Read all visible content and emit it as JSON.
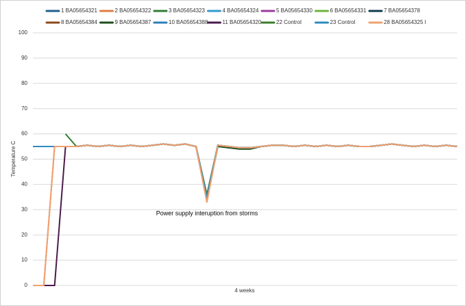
{
  "chart_data": {
    "type": "line",
    "ylabel": "Temperature C",
    "xlabel": "4 weeks",
    "annotation": "Power supply interuption from storms",
    "legend": "top",
    "grid": true,
    "ylim": [
      0,
      100
    ],
    "yticks": [
      0,
      10,
      20,
      30,
      40,
      50,
      60,
      70,
      80,
      90,
      100
    ],
    "categories": [
      null,
      null,
      null,
      null,
      null,
      null,
      null,
      null,
      null,
      null,
      null,
      null,
      null,
      null,
      null,
      null,
      null,
      null,
      null,
      null,
      null,
      null,
      null,
      null,
      null,
      null,
      null,
      null,
      null,
      null,
      null,
      null,
      null,
      null,
      null,
      null,
      null,
      null,
      null,
      null
    ],
    "series": [
      {
        "name": "1 BA05654321",
        "color": "#1f5f8b",
        "values": [
          null,
          null,
          null,
          55,
          55,
          55.5,
          55,
          55.5,
          55,
          55.5,
          55,
          55.5,
          56,
          55.5,
          56,
          55,
          34,
          55.5,
          55,
          54.5,
          54.5,
          55,
          55.5,
          55.5,
          55,
          55.5,
          55,
          55.5,
          55,
          55.5,
          55,
          55,
          55.5,
          56,
          55.5,
          55,
          55.5,
          55,
          55.5,
          55
        ]
      },
      {
        "name": "2 BA05654322",
        "color": "#e07b45",
        "values": [
          0,
          0,
          55,
          55,
          55,
          55.5,
          55,
          55.5,
          55,
          55.5,
          55,
          55.5,
          56,
          55.5,
          56,
          55,
          33,
          55.5,
          55,
          54.5,
          54.5,
          55,
          55.5,
          55.5,
          55,
          55.5,
          55,
          55.5,
          55,
          55.5,
          55,
          55,
          55.5,
          56,
          55.5,
          55,
          55.5,
          55,
          55.5,
          55
        ]
      },
      {
        "name": "3 BA05654323",
        "color": "#2e7d32",
        "values": [
          null,
          null,
          null,
          60,
          55,
          55.5,
          55,
          55.5,
          55,
          55.5,
          55,
          55.5,
          56,
          55.5,
          56,
          55,
          35,
          55.5,
          55,
          54.5,
          54.5,
          55,
          55.5,
          55.5,
          55,
          55.5,
          55,
          55.5,
          55,
          55.5,
          55,
          55,
          55.5,
          56,
          55.5,
          55,
          55.5,
          55,
          55.5,
          55
        ]
      },
      {
        "name": "4 BA05654324",
        "color": "#3399cc",
        "values": [
          null,
          null,
          null,
          55,
          55,
          55.5,
          55,
          55.5,
          55,
          55.5,
          55,
          55.5,
          56,
          55.5,
          56,
          55,
          34,
          55.5,
          55,
          54.5,
          54.5,
          55,
          55.5,
          55.5,
          55,
          55.5,
          55,
          55.5,
          55,
          55.5,
          55,
          55,
          55.5,
          56,
          55.5,
          55,
          55.5,
          55,
          55.5,
          55
        ]
      },
      {
        "name": "5 BA05654330",
        "color": "#9b3a9b",
        "values": [
          null,
          null,
          null,
          55,
          55,
          55.5,
          55,
          55.5,
          55,
          55.5,
          55,
          55.5,
          56,
          55.5,
          56,
          55,
          35,
          55.5,
          55,
          54.5,
          54.5,
          55,
          55.5,
          55.5,
          55,
          55.5,
          55,
          55.5,
          55,
          55.5,
          55,
          55,
          55.5,
          56,
          55.5,
          55,
          55.5,
          55,
          55.5,
          55
        ]
      },
      {
        "name": "6 BA05654331",
        "color": "#6cb33f",
        "values": [
          null,
          null,
          null,
          55,
          55,
          55.5,
          55,
          55.5,
          55,
          55.5,
          55,
          55.5,
          56,
          55.5,
          56,
          55,
          34,
          55.5,
          55,
          54.5,
          54.5,
          55,
          55.5,
          55.5,
          55,
          55.5,
          55,
          55.5,
          55,
          55.5,
          55,
          55,
          55.5,
          56,
          55.5,
          55,
          55.5,
          55,
          55.5,
          55
        ]
      },
      {
        "name": "7 BA05654378",
        "color": "#0d3b4f",
        "values": [
          null,
          null,
          null,
          55,
          55,
          55.5,
          55,
          55.5,
          55,
          55.5,
          55,
          55.5,
          56,
          55.5,
          56,
          55,
          34,
          55.5,
          55,
          54.5,
          54.5,
          55,
          55.5,
          55.5,
          55,
          55.5,
          55,
          55.5,
          55,
          55.5,
          55,
          55,
          55.5,
          56,
          55.5,
          55,
          55.5,
          55,
          55.5,
          55
        ]
      },
      {
        "name": "8 BA05654384",
        "color": "#8b4a1c",
        "values": [
          null,
          null,
          null,
          55,
          55,
          55.5,
          55,
          55.5,
          55,
          55.5,
          55,
          55.5,
          56,
          55.5,
          56,
          55,
          35,
          55.5,
          55,
          54.5,
          54.5,
          55,
          55.5,
          55.5,
          55,
          55.5,
          55,
          55.5,
          55,
          55.5,
          55,
          55,
          55.5,
          56,
          55.5,
          55,
          55.5,
          55,
          55.5,
          55
        ]
      },
      {
        "name": "9 BA05654387",
        "color": "#1b4d1b",
        "values": [
          null,
          null,
          null,
          55,
          55,
          55.5,
          55,
          55.5,
          55,
          55.5,
          55,
          55.5,
          56,
          55.5,
          56,
          55,
          34,
          55,
          54.5,
          54,
          54,
          55,
          55.5,
          55.5,
          55,
          55.5,
          55,
          55.5,
          55,
          55.5,
          55,
          55,
          55.5,
          56,
          55.5,
          55,
          55.5,
          55,
          55.5,
          55
        ]
      },
      {
        "name": "10 BA05654388",
        "color": "#2a7fb8",
        "values": [
          55,
          55,
          55,
          55,
          55,
          55.5,
          55,
          55.5,
          55,
          55.5,
          55,
          55.5,
          56,
          55.5,
          56,
          55,
          34,
          55.5,
          55,
          54.5,
          54.5,
          55,
          55.5,
          55.5,
          55,
          55.5,
          55,
          55.5,
          55,
          55.5,
          55,
          55,
          55.5,
          56,
          55.5,
          55,
          55.5,
          55,
          55.5,
          55
        ]
      },
      {
        "name": "11 BA05654320",
        "color": "#4a1a4a",
        "values": [
          0,
          0,
          0,
          55,
          55,
          55.5,
          55,
          55.5,
          55,
          55.5,
          55,
          55.5,
          56,
          55.5,
          56,
          55,
          34,
          55.5,
          55,
          54.5,
          54.5,
          55,
          55.5,
          55.5,
          55,
          55.5,
          55,
          55.5,
          55,
          55.5,
          55,
          55,
          55.5,
          56,
          55.5,
          55,
          55.5,
          55,
          55.5,
          55
        ]
      },
      {
        "name": "22 Control",
        "color": "#3a7d2a",
        "values": [
          null,
          null,
          null,
          55,
          55,
          55.5,
          55,
          55.5,
          55,
          55.5,
          55,
          55.5,
          56,
          55.5,
          56,
          55,
          36,
          55.5,
          55,
          54.5,
          54.5,
          55,
          55.5,
          55.5,
          55,
          55.5,
          55,
          55.5,
          55,
          55.5,
          55,
          55,
          55.5,
          56,
          55.5,
          55,
          55.5,
          55,
          55.5,
          55
        ]
      },
      {
        "name": "23 Control",
        "color": "#2e8bc0",
        "values": [
          55,
          55,
          55,
          55,
          55,
          55.5,
          55,
          55.5,
          55,
          55.5,
          55,
          55.5,
          56,
          55.5,
          56,
          55,
          35,
          55.5,
          55,
          54.5,
          54.5,
          55,
          55.5,
          55.5,
          55,
          55.5,
          55,
          55.5,
          55,
          55.5,
          55,
          55,
          55.5,
          56,
          55.5,
          55,
          55.5,
          55,
          55.5,
          55
        ]
      },
      {
        "name": "28 BA05654325 I",
        "color": "#f0a070",
        "values": [
          0,
          0,
          55,
          55,
          55,
          55.5,
          55,
          55.5,
          55,
          55.5,
          55,
          55.5,
          56,
          55.5,
          56,
          55,
          33,
          55.5,
          55,
          54.5,
          54.5,
          55,
          55.5,
          55.5,
          55,
          55.5,
          55,
          55.5,
          55,
          55.5,
          55,
          55,
          55.5,
          56,
          55.5,
          55,
          55.5,
          55,
          55.5,
          55
        ]
      }
    ]
  }
}
